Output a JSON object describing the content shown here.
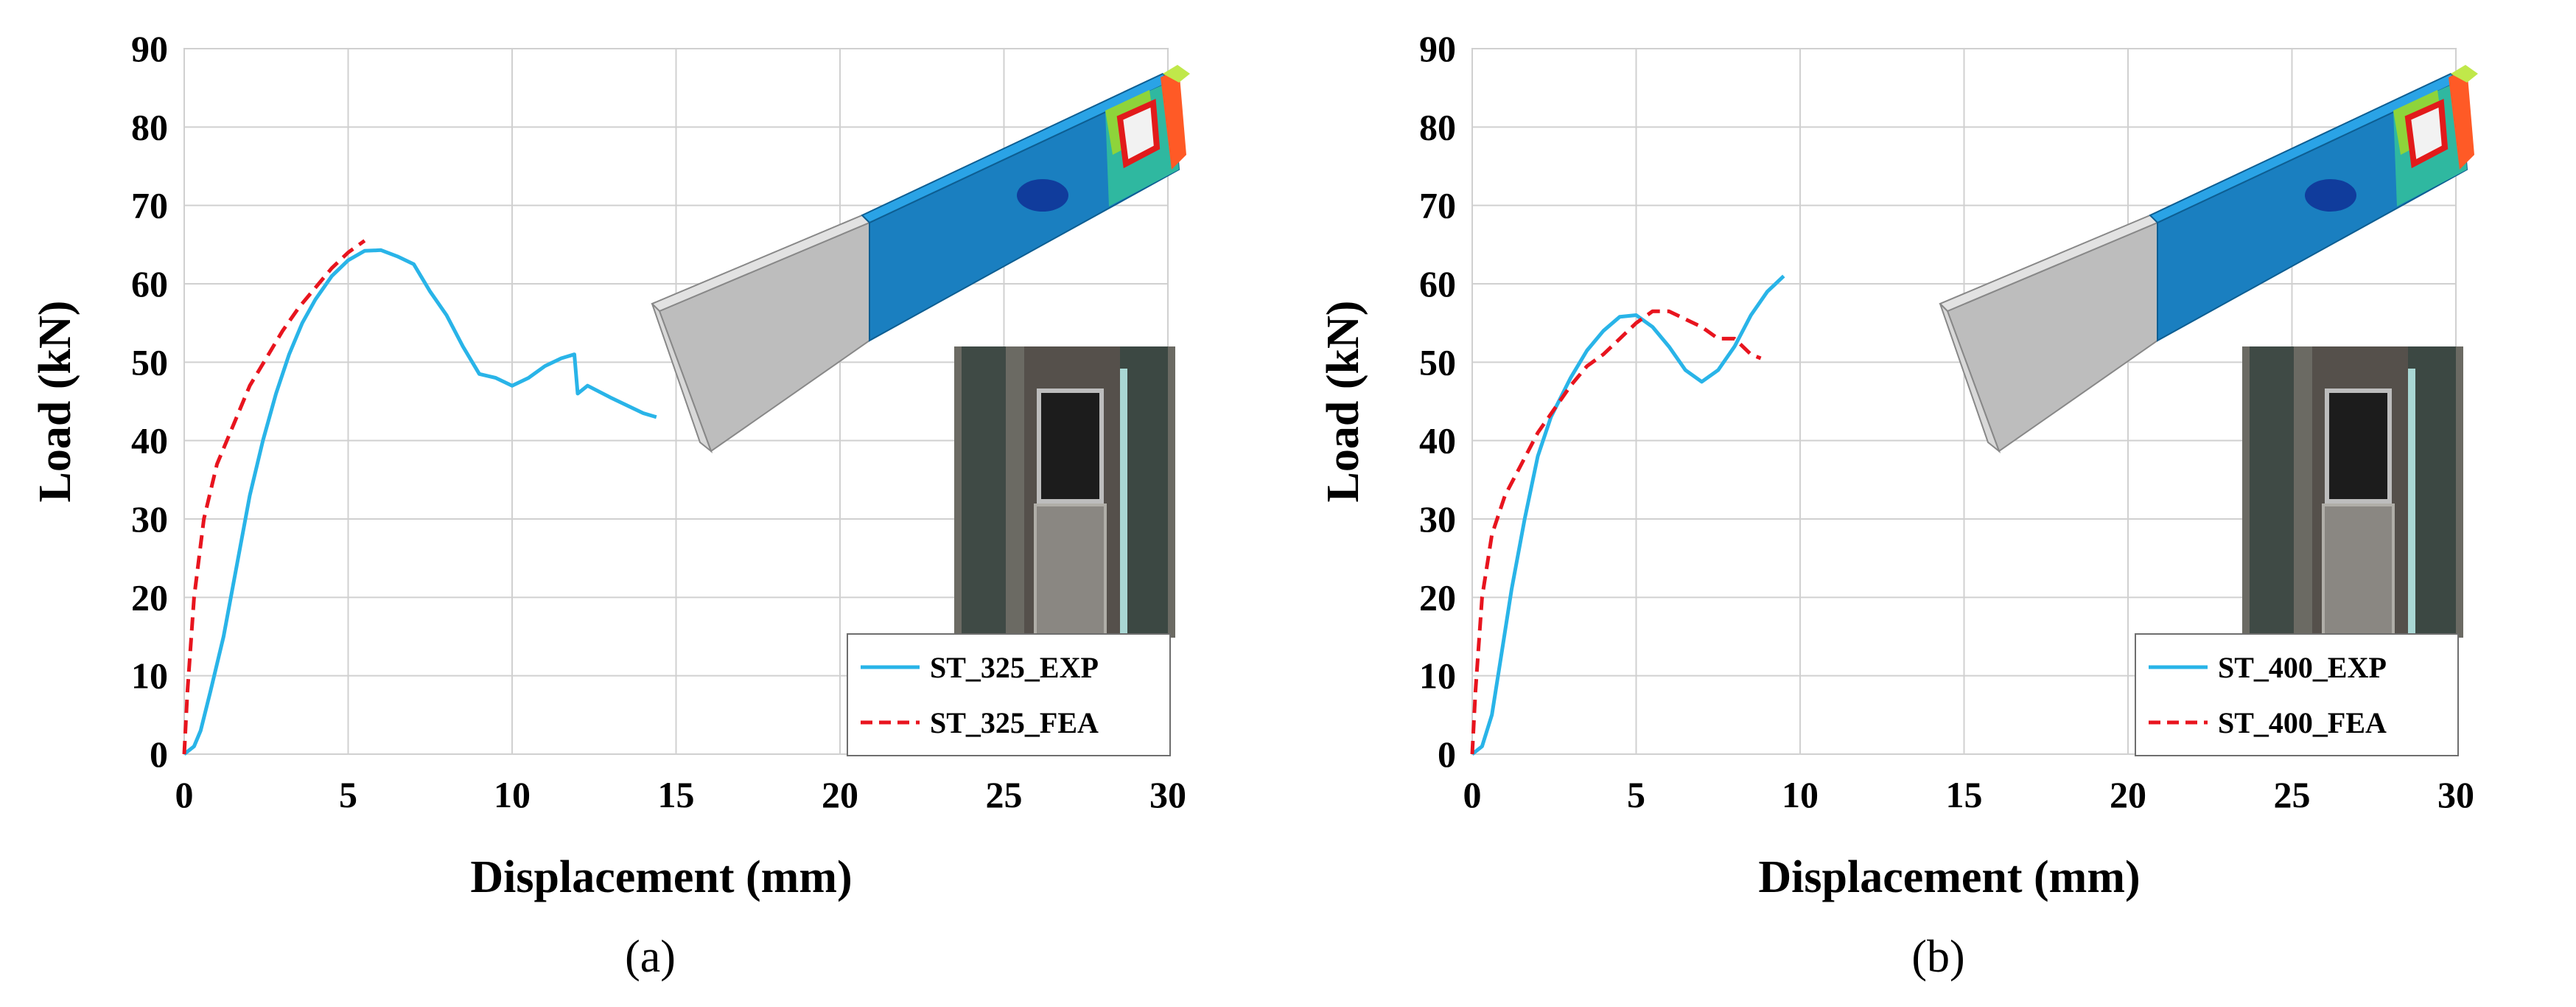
{
  "chart_data": [
    {
      "type": "line",
      "panel_label": "(a)",
      "xlabel": "Displacement (mm)",
      "ylabel": "Load (kN)",
      "xlim": [
        0,
        30
      ],
      "ylim": [
        0,
        90
      ],
      "xticks": [
        0,
        5,
        10,
        15,
        20,
        25,
        30
      ],
      "yticks": [
        0,
        10,
        20,
        30,
        40,
        50,
        60,
        70,
        80,
        90
      ],
      "grid": true,
      "legend_position": "bottom-right",
      "series": [
        {
          "name": "ST_325_EXP",
          "color": "#29b4e8",
          "style": "solid",
          "points": [
            [
              0,
              0
            ],
            [
              0.3,
              1
            ],
            [
              0.5,
              3
            ],
            [
              0.8,
              8
            ],
            [
              1.2,
              15
            ],
            [
              1.6,
              24
            ],
            [
              2,
              33
            ],
            [
              2.4,
              40
            ],
            [
              2.8,
              46
            ],
            [
              3.2,
              51
            ],
            [
              3.6,
              55
            ],
            [
              4,
              58
            ],
            [
              4.5,
              61
            ],
            [
              5,
              63
            ],
            [
              5.5,
              64.2
            ],
            [
              6,
              64.3
            ],
            [
              6.5,
              63.5
            ],
            [
              7,
              62.5
            ],
            [
              7.5,
              59
            ],
            [
              8,
              56
            ],
            [
              8.5,
              52
            ],
            [
              9,
              48.5
            ],
            [
              9.5,
              48
            ],
            [
              10,
              47
            ],
            [
              10.5,
              48
            ],
            [
              11,
              49.5
            ],
            [
              11.5,
              50.5
            ],
            [
              11.9,
              51
            ],
            [
              12,
              46
            ],
            [
              12.3,
              47
            ],
            [
              13,
              45.5
            ],
            [
              14,
              43.5
            ],
            [
              14.4,
              43
            ]
          ]
        },
        {
          "name": "ST_325_FEA",
          "color": "#e8141e",
          "style": "dashed",
          "points": [
            [
              0,
              0
            ],
            [
              0.1,
              8
            ],
            [
              0.3,
              20
            ],
            [
              0.6,
              30
            ],
            [
              1,
              37
            ],
            [
              1.5,
              42
            ],
            [
              2,
              47
            ],
            [
              2.5,
              50.5
            ],
            [
              3,
              54
            ],
            [
              3.5,
              57
            ],
            [
              4,
              59.5
            ],
            [
              4.5,
              62
            ],
            [
              5,
              64
            ],
            [
              5.5,
              65.5
            ]
          ]
        }
      ],
      "images": [
        "fea-beam-model",
        "test-photo"
      ]
    },
    {
      "type": "line",
      "panel_label": "(b)",
      "xlabel": "Displacement (mm)",
      "ylabel": "Load (kN)",
      "xlim": [
        0,
        30
      ],
      "ylim": [
        0,
        90
      ],
      "xticks": [
        0,
        5,
        10,
        15,
        20,
        25,
        30
      ],
      "yticks": [
        0,
        10,
        20,
        30,
        40,
        50,
        60,
        70,
        80,
        90
      ],
      "grid": true,
      "legend_position": "bottom-right",
      "series": [
        {
          "name": "ST_400_EXP",
          "color": "#29b4e8",
          "style": "solid",
          "points": [
            [
              0,
              0
            ],
            [
              0.3,
              1
            ],
            [
              0.6,
              5
            ],
            [
              0.9,
              13
            ],
            [
              1.2,
              21
            ],
            [
              1.6,
              30
            ],
            [
              2,
              38
            ],
            [
              2.4,
              43
            ],
            [
              3,
              48
            ],
            [
              3.5,
              51.5
            ],
            [
              4,
              54
            ],
            [
              4.5,
              55.8
            ],
            [
              5,
              56
            ],
            [
              5.5,
              54.5
            ],
            [
              6,
              52
            ],
            [
              6.5,
              49
            ],
            [
              7,
              47.5
            ],
            [
              7.5,
              49
            ],
            [
              8,
              52
            ],
            [
              8.5,
              56
            ],
            [
              9,
              59
            ],
            [
              9.5,
              61
            ]
          ]
        },
        {
          "name": "ST_400_FEA",
          "color": "#e8141e",
          "style": "dashed",
          "points": [
            [
              0,
              0
            ],
            [
              0.1,
              8
            ],
            [
              0.3,
              20
            ],
            [
              0.6,
              28
            ],
            [
              1,
              33
            ],
            [
              1.5,
              37
            ],
            [
              2,
              41
            ],
            [
              2.5,
              44
            ],
            [
              3,
              47
            ],
            [
              3.5,
              49.5
            ],
            [
              4,
              51
            ],
            [
              4.5,
              53
            ],
            [
              5,
              55
            ],
            [
              5.5,
              56.5
            ],
            [
              6,
              56.5
            ],
            [
              6.5,
              55.5
            ],
            [
              7,
              54.5
            ],
            [
              7.5,
              53
            ],
            [
              8,
              53
            ],
            [
              8.5,
              51
            ],
            [
              8.8,
              50.5
            ]
          ]
        }
      ],
      "images": [
        "fea-beam-model",
        "test-photo"
      ]
    }
  ]
}
